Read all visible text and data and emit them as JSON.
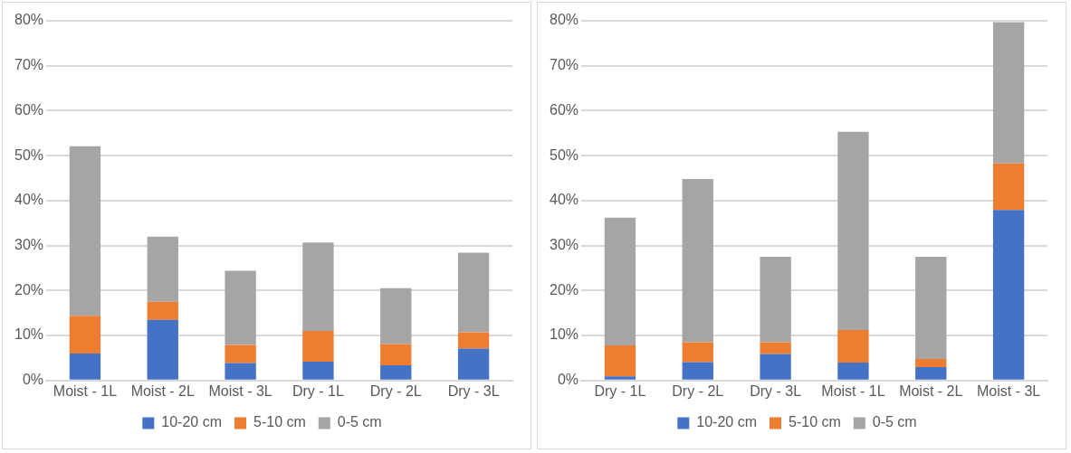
{
  "chart_data": [
    {
      "type": "bar",
      "stacked": true,
      "categories": [
        "Moist - 1L",
        "Moist - 2L",
        "Moist - 3L",
        "Dry - 1L",
        "Dry - 2L",
        "Dry - 3L"
      ],
      "series": [
        {
          "name": "10-20 cm",
          "color": "#4472c4",
          "values": [
            6.0,
            13.5,
            3.9,
            4.2,
            3.4,
            7.1
          ]
        },
        {
          "name": "5-10 cm",
          "color": "#ed7d31",
          "values": [
            8.4,
            4.0,
            4.0,
            6.8,
            4.7,
            3.6
          ]
        },
        {
          "name": "0-5 cm",
          "color": "#a5a5a5",
          "values": [
            37.7,
            14.5,
            16.5,
            19.7,
            12.4,
            17.7
          ]
        }
      ],
      "ylim": [
        0,
        80
      ],
      "yticks": [
        {
          "value": 0,
          "label": "0%"
        },
        {
          "value": 10,
          "label": "10%"
        },
        {
          "value": 20,
          "label": "20%"
        },
        {
          "value": 30,
          "label": "30%"
        },
        {
          "value": 40,
          "label": "40%"
        },
        {
          "value": 50,
          "label": "50%"
        },
        {
          "value": 60,
          "label": "60%"
        },
        {
          "value": 70,
          "label": "70%"
        },
        {
          "value": 80,
          "label": "80%"
        }
      ],
      "grid": "y",
      "legend": "bottom"
    },
    {
      "type": "bar",
      "stacked": true,
      "categories": [
        "Dry - 1L",
        "Dry - 2L",
        "Dry - 3L",
        "Moist - 1L",
        "Moist - 2L",
        "Moist - 3L"
      ],
      "series": [
        {
          "name": "10-20 cm",
          "color": "#4472c4",
          "values": [
            0.9,
            4.1,
            5.9,
            4.0,
            3.0,
            37.9
          ]
        },
        {
          "name": "5-10 cm",
          "color": "#ed7d31",
          "values": [
            6.9,
            4.4,
            2.6,
            7.2,
            1.8,
            10.4
          ]
        },
        {
          "name": "0-5 cm",
          "color": "#a5a5a5",
          "values": [
            28.4,
            36.3,
            19.0,
            44.1,
            22.7,
            31.4
          ]
        }
      ],
      "ylim": [
        0,
        80
      ],
      "yticks": [
        {
          "value": 0,
          "label": "0%"
        },
        {
          "value": 10,
          "label": "10%"
        },
        {
          "value": 20,
          "label": "20%"
        },
        {
          "value": 30,
          "label": "30%"
        },
        {
          "value": 40,
          "label": "40%"
        },
        {
          "value": 50,
          "label": "50%"
        },
        {
          "value": 60,
          "label": "60%"
        },
        {
          "value": 70,
          "label": "70%"
        },
        {
          "value": 80,
          "label": "80%"
        }
      ],
      "grid": "y",
      "legend": "bottom"
    }
  ]
}
